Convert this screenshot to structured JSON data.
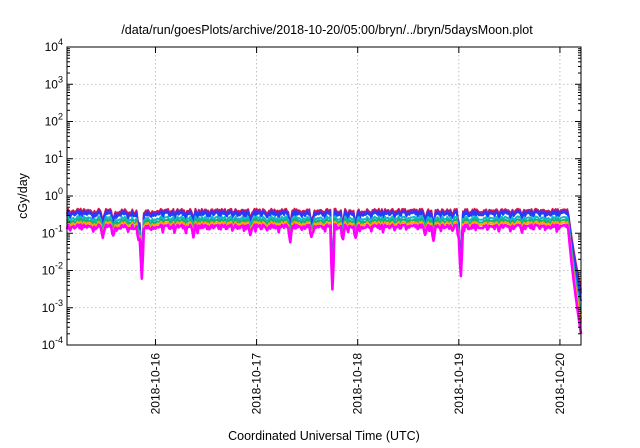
{
  "chart_data": {
    "type": "line",
    "title": "/data/run/goesPlots/archive/2018-10-20/05:00/bryn/../bryn/5daysMoon.plot",
    "xlabel": "Coordinated Universal Time (UTC)",
    "ylabel": "cGy/day",
    "y_scale": "log",
    "ylim": [
      0.0001,
      10000
    ],
    "y_ticks": [
      {
        "base": "10",
        "exp": "-4"
      },
      {
        "base": "10",
        "exp": "-3"
      },
      {
        "base": "10",
        "exp": "-2"
      },
      {
        "base": "10",
        "exp": "-1"
      },
      {
        "base": "10",
        "exp": "0"
      },
      {
        "base": "10",
        "exp": "1"
      },
      {
        "base": "10",
        "exp": "2"
      },
      {
        "base": "10",
        "exp": "3"
      },
      {
        "base": "10",
        "exp": "4"
      }
    ],
    "xlim": [
      "2018-10-15 03:00",
      "2018-10-20 05:00"
    ],
    "x_ticks": [
      "2018-10-16",
      "2018-10-17",
      "2018-10-18",
      "2018-10-19",
      "2018-10-20"
    ],
    "grid": true,
    "series_colors": [
      "#dd1c3c",
      "#7a1fc8",
      "#1f3dff",
      "#14b8c8",
      "#16b070",
      "#ffa500",
      "#ff00ff"
    ],
    "series_levels": [
      0.4,
      0.37,
      0.33,
      0.25,
      0.21,
      0.18,
      0.15
    ],
    "dips": [
      {
        "x": "2018-10-15 11:30",
        "factor": 0.55
      },
      {
        "x": "2018-10-15 14:00",
        "factor": 0.55
      },
      {
        "x": "2018-10-15 20:00",
        "factor": 0.45
      },
      {
        "x": "2018-10-15 20:45",
        "factor": 0.04
      },
      {
        "x": "2018-10-16 09:00",
        "factor": 0.55
      },
      {
        "x": "2018-10-16 22:30",
        "factor": 0.6
      },
      {
        "x": "2018-10-17 08:00",
        "factor": 0.45
      },
      {
        "x": "2018-10-17 13:00",
        "factor": 0.5
      },
      {
        "x": "2018-10-17 18:00",
        "factor": 0.02
      },
      {
        "x": "2018-10-17 20:30",
        "factor": 0.45
      },
      {
        "x": "2018-10-17 23:30",
        "factor": 0.5
      },
      {
        "x": "2018-10-18 16:00",
        "factor": 0.55
      },
      {
        "x": "2018-10-18 18:00",
        "factor": 0.45
      },
      {
        "x": "2018-10-19 00:00",
        "factor": 0.45
      },
      {
        "x": "2018-10-19 00:30",
        "factor": 0.05
      }
    ],
    "drop_start": "2018-10-20 02:00",
    "end_values": [
      0.003,
      0.0025,
      0.0015,
      0.0007,
      0.0005,
      0.0004,
      0.0002
    ]
  }
}
